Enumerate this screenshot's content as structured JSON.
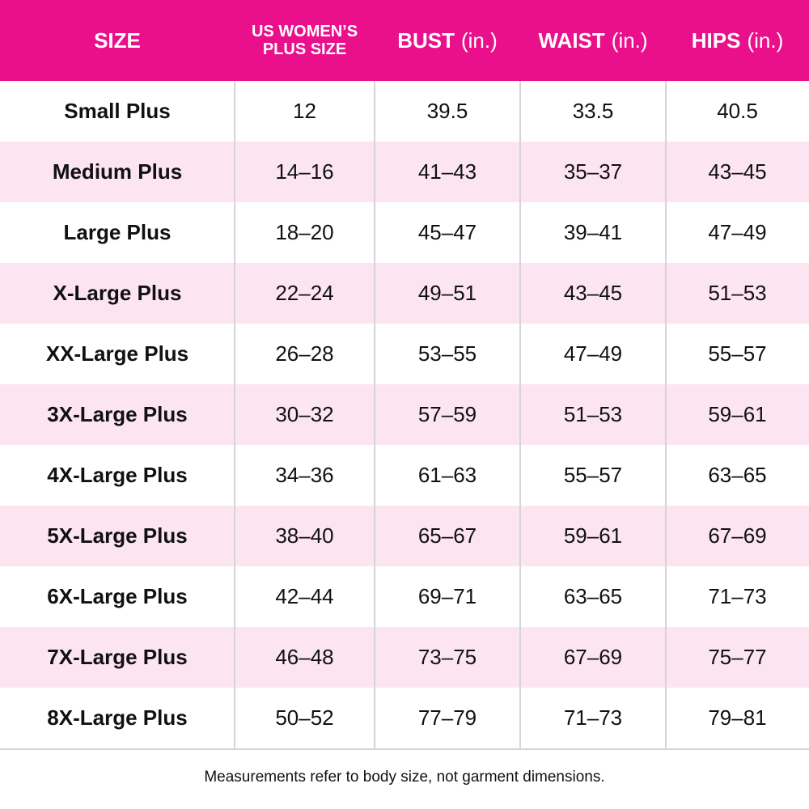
{
  "table": {
    "header": [
      {
        "label": "SIZE"
      },
      {
        "label": "US WOMEN’S PLUS SIZE"
      },
      {
        "label": "BUST",
        "unit": "(in.)"
      },
      {
        "label": "WAIST",
        "unit": "(in.)"
      },
      {
        "label": "HIPS",
        "unit": "(in.)"
      }
    ],
    "rows": [
      [
        "Small Plus",
        "12",
        "39.5",
        "33.5",
        "40.5"
      ],
      [
        "Medium Plus",
        "14–16",
        "41–43",
        "35–37",
        "43–45"
      ],
      [
        "Large Plus",
        "18–20",
        "45–47",
        "39–41",
        "47–49"
      ],
      [
        "X-Large Plus",
        "22–24",
        "49–51",
        "43–45",
        "51–53"
      ],
      [
        "XX-Large Plus",
        "26–28",
        "53–55",
        "47–49",
        "55–57"
      ],
      [
        "3X-Large Plus",
        "30–32",
        "57–59",
        "51–53",
        "59–61"
      ],
      [
        "4X-Large Plus",
        "34–36",
        "61–63",
        "55–57",
        "63–65"
      ],
      [
        "5X-Large Plus",
        "38–40",
        "65–67",
        "59–61",
        "67–69"
      ],
      [
        "6X-Large Plus",
        "42–44",
        "69–71",
        "63–65",
        "71–73"
      ],
      [
        "7X-Large Plus",
        "46–48",
        "73–75",
        "67–69",
        "75–77"
      ],
      [
        "8X-Large Plus",
        "50–52",
        "77–79",
        "71–73",
        "79–81"
      ]
    ]
  },
  "footnote": "Measurements refer to body size, not garment dimensions."
}
